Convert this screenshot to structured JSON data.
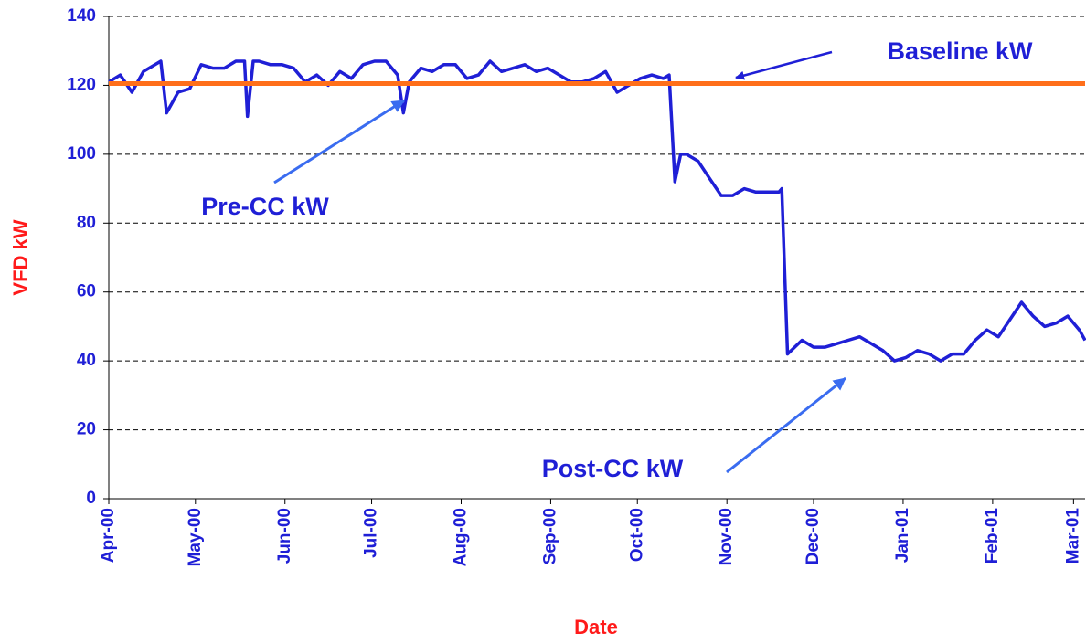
{
  "chart_data": {
    "type": "line",
    "xlabel": "Date",
    "ylabel": "VFD kW",
    "xlim": [
      0,
      338
    ],
    "ylim": [
      0,
      140
    ],
    "xticks": [
      {
        "value": 0,
        "label": "Apr-00"
      },
      {
        "value": 30,
        "label": "May-00"
      },
      {
        "value": 61,
        "label": "Jun-00"
      },
      {
        "value": 91,
        "label": "Jul-00"
      },
      {
        "value": 122,
        "label": "Aug-00"
      },
      {
        "value": 153,
        "label": "Sep-00"
      },
      {
        "value": 183,
        "label": "Oct-00"
      },
      {
        "value": 214,
        "label": "Nov-00"
      },
      {
        "value": 244,
        "label": "Dec-00"
      },
      {
        "value": 275,
        "label": "Jan-01"
      },
      {
        "value": 306,
        "label": "Feb-01"
      },
      {
        "value": 334,
        "label": "Mar-01"
      }
    ],
    "yticks": [
      0,
      20,
      40,
      60,
      80,
      100,
      120,
      140
    ],
    "grid": true,
    "series": [
      {
        "color": "#ff6f1a",
        "x": [
          0,
          338
        ],
        "values": [
          120.5,
          120.5
        ]
      },
      {
        "color": "#1f1fd6",
        "x": [
          0,
          4,
          8,
          12,
          16,
          18,
          20,
          24,
          28,
          32,
          36,
          40,
          44,
          47,
          48,
          50,
          52,
          56,
          60,
          64,
          68,
          72,
          76,
          80,
          84,
          88,
          92,
          96,
          100,
          102,
          104,
          108,
          112,
          116,
          120,
          124,
          128,
          132,
          136,
          140,
          144,
          148,
          152,
          156,
          160,
          164,
          168,
          172,
          176,
          180,
          184,
          188,
          192,
          194,
          196,
          198,
          200,
          204,
          208,
          212,
          216,
          220,
          224,
          228,
          232,
          233,
          235,
          240,
          244,
          248,
          252,
          256,
          260,
          264,
          268,
          272,
          276,
          280,
          284,
          288,
          292,
          296,
          300,
          304,
          308,
          312,
          316,
          320,
          324,
          328,
          332,
          336,
          338
        ],
        "values": [
          121,
          123,
          118,
          124,
          126,
          127,
          112,
          118,
          119,
          126,
          125,
          125,
          127,
          127,
          111,
          127,
          127,
          126,
          126,
          125,
          121,
          123,
          120,
          124,
          122,
          126,
          127,
          127,
          123,
          112,
          121,
          125,
          124,
          126,
          126,
          122,
          123,
          127,
          124,
          125,
          126,
          124,
          125,
          123,
          121,
          121,
          122,
          124,
          118,
          120,
          122,
          123,
          122,
          123,
          92,
          100,
          100,
          98,
          93,
          88,
          88,
          90,
          89,
          89,
          89,
          90,
          42,
          46,
          44,
          44,
          45,
          46,
          47,
          45,
          43,
          40,
          41,
          43,
          42,
          40,
          42,
          42,
          46,
          49,
          47,
          52,
          57,
          53,
          50,
          51,
          53,
          49,
          46
        ]
      }
    ],
    "annotations": [
      "Baseline kW",
      "Pre-CC kW",
      "Post-CC kW"
    ]
  }
}
